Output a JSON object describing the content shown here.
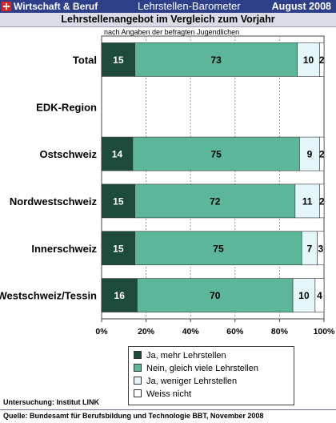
{
  "header": {
    "brand": "Wirtschaft & Beruf",
    "product": "Lehrstellen-Barometer",
    "date": "August 2008",
    "flag_icon": "swiss-flag-icon"
  },
  "colors": {
    "ja_mehr": "#1e4a3c",
    "nein_gleich": "#5bb69a",
    "ja_weniger": "#e4f6f9",
    "weiss_nicht": "#ffffff",
    "header_bg": "#2e3f8a",
    "title_bg": "#d9dbe6"
  },
  "chart_data": {
    "type": "bar",
    "orientation": "horizontal",
    "stacked": true,
    "title": "Lehrstellenangebot im Vergleich zum Vorjahr",
    "subtitle": "nach Angaben der befragten Jugendlichen",
    "categories": [
      "Total",
      "EDK-Region",
      "Ostschweiz",
      "Nordwestschweiz",
      "Innerschweiz",
      "Westschweiz/Tessin"
    ],
    "section_headers": [
      "EDK-Region"
    ],
    "series": [
      {
        "name": "Ja, mehr Lehrstellen",
        "values": [
          15,
          null,
          14,
          15,
          15,
          16
        ]
      },
      {
        "name": "Nein, gleich viele Lehrstellen",
        "values": [
          73,
          null,
          75,
          72,
          75,
          70
        ]
      },
      {
        "name": "Ja, weniger Lehrstellen",
        "values": [
          10,
          null,
          9,
          11,
          7,
          10
        ]
      },
      {
        "name": "Weiss nicht",
        "values": [
          2,
          null,
          2,
          2,
          3,
          4
        ]
      }
    ],
    "xlim": [
      0,
      100
    ],
    "xticks": [
      "0%",
      "20%",
      "40%",
      "60%",
      "80%",
      "100%"
    ],
    "grid": true,
    "legend_position": "bottom"
  },
  "footer": {
    "survey": "Untersuchung: Institut LINK",
    "source": "Quelle: Bundesamt für Berufsbildung und Technologie BBT, November 2008"
  }
}
